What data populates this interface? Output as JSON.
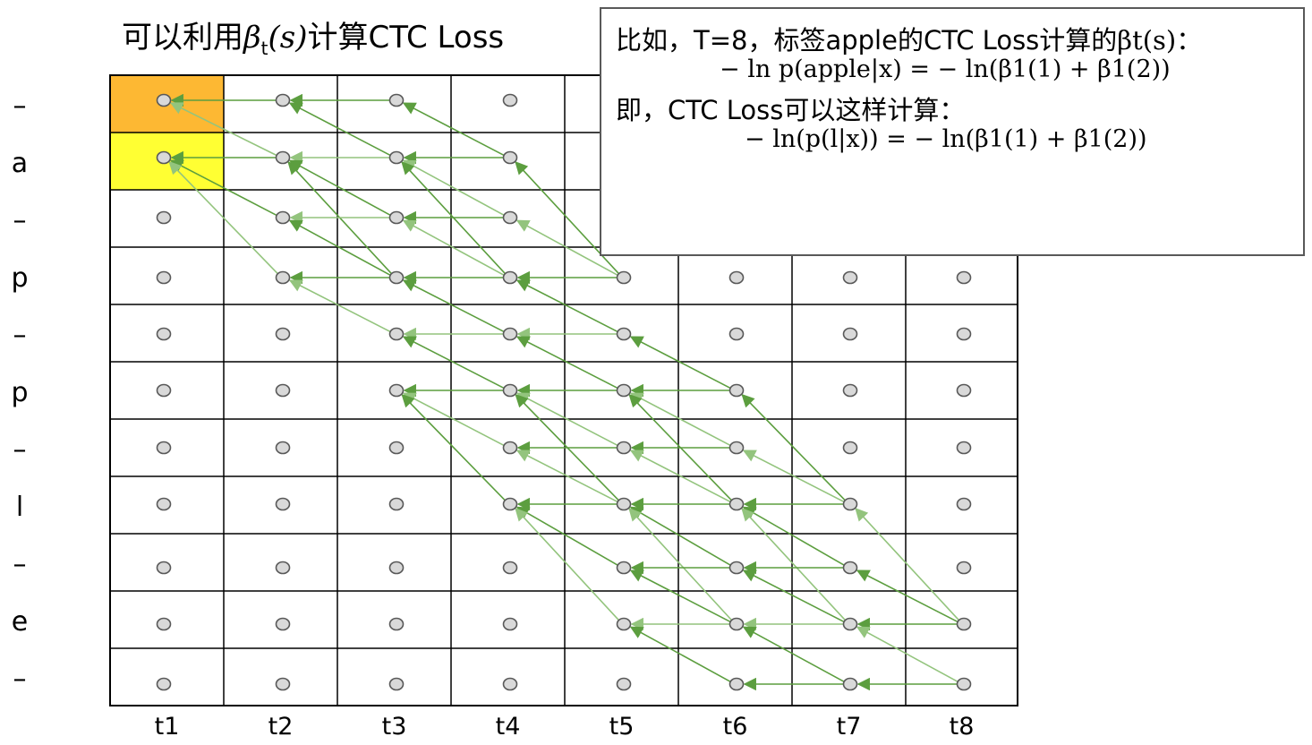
{
  "title": {
    "prefix": "可以利用",
    "beta": "β",
    "sub": "t",
    "arg": "(s)",
    "suffix": "计算CTC Loss"
  },
  "row_labels": [
    "–",
    "a",
    "–",
    "p",
    "–",
    "p",
    "–",
    "l",
    "–",
    "e",
    "–"
  ],
  "col_labels": [
    "t1",
    "t2",
    "t3",
    "t4",
    "t5",
    "t6",
    "t7",
    "t8"
  ],
  "info_box": {
    "line1": "比如，T=8，标签apple的CTC Loss计算的",
    "line1_math": "βt(s)：",
    "formula1": "− ln p(apple|x) = − ln(β1(1) + β1(2))",
    "line2": "即，CTC Loss可以这样计算：",
    "formula2": "− ln(p(l|x)) = − ln(β1(1) + β1(2))"
  },
  "colors": {
    "highlight_blank": "#FDB833",
    "highlight_a": "#FFFF33",
    "node_fill": "#D9D9D9",
    "node_stroke": "#595959",
    "arrow_dark": "#5C9E3F",
    "arrow_light": "#93C47D",
    "grid": "#000000"
  }
}
